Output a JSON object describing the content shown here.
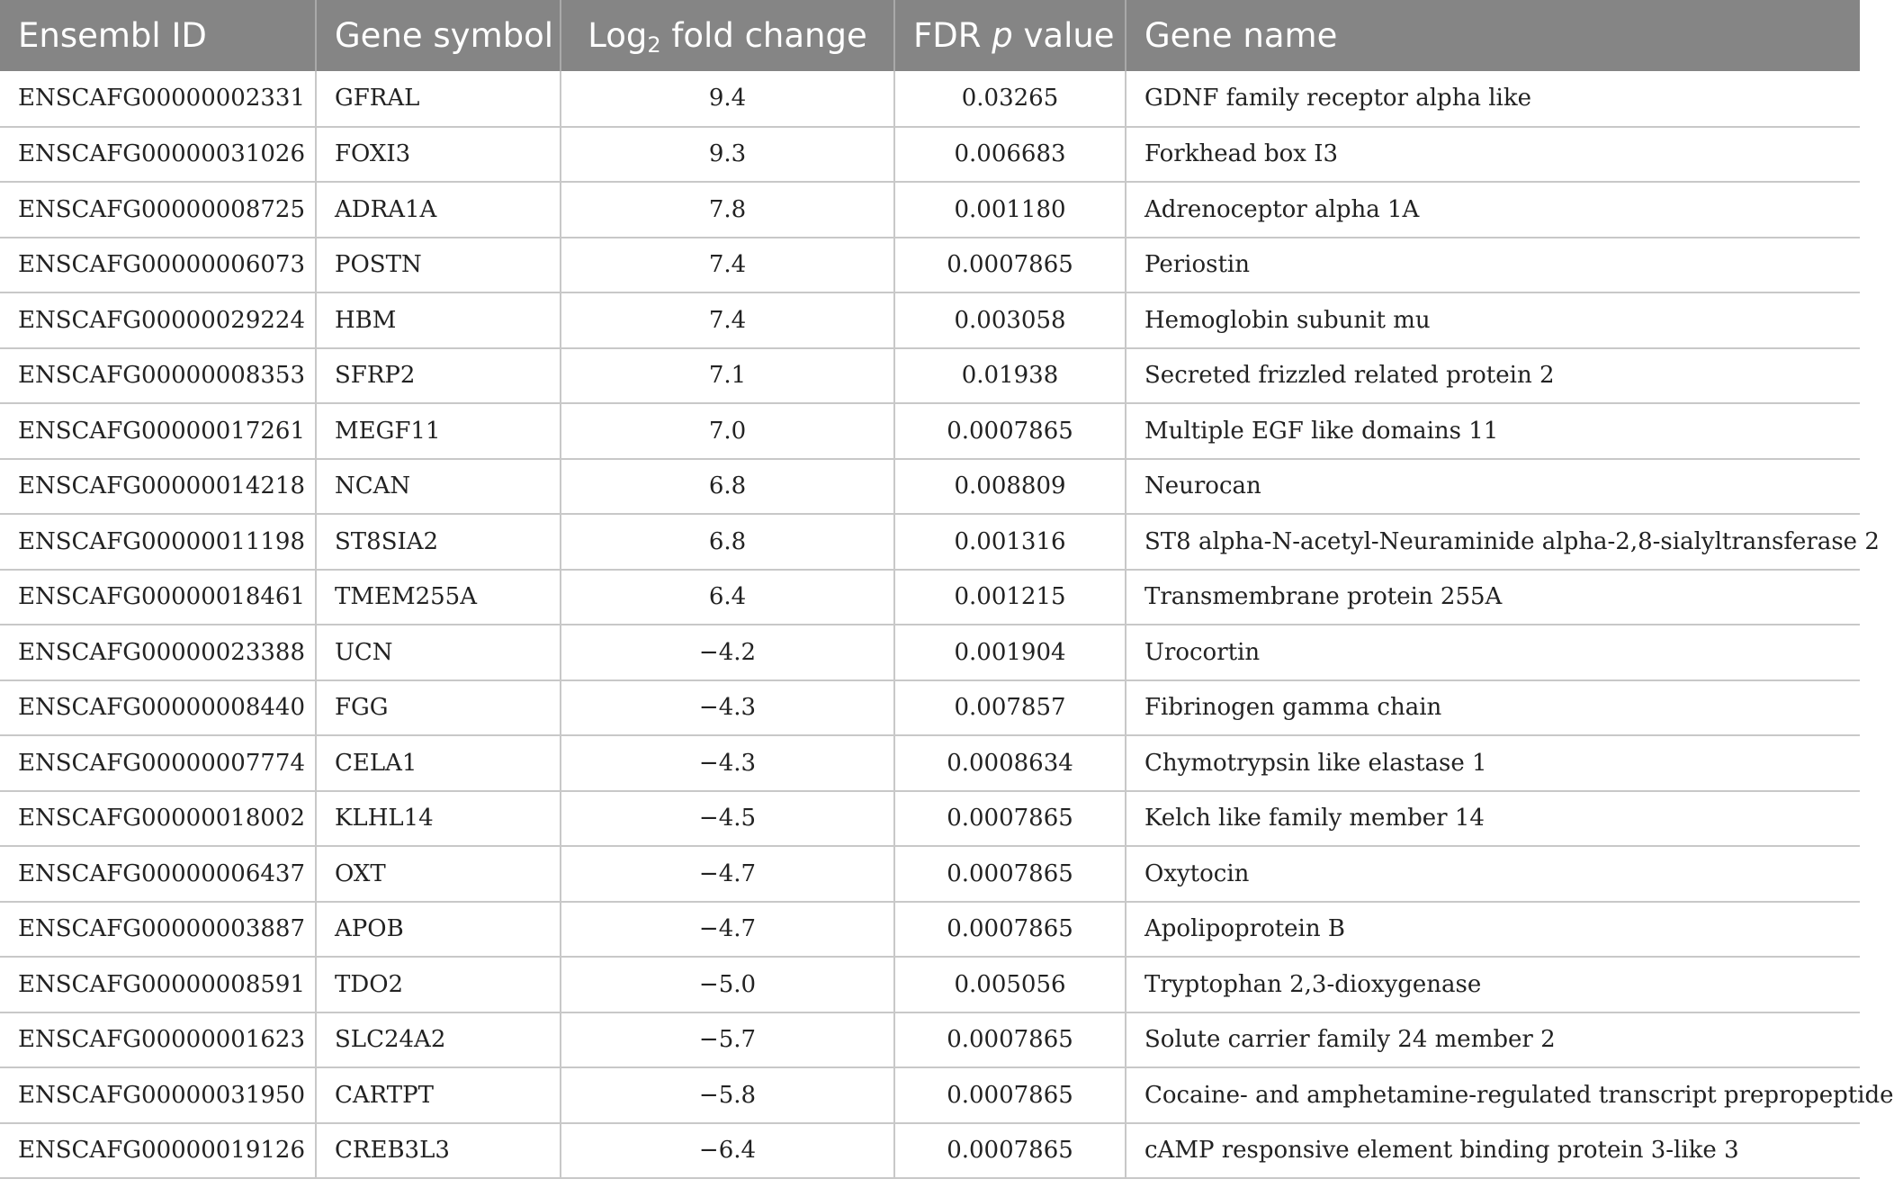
{
  "table": {
    "headers": {
      "ensembl_id": "Ensembl ID",
      "gene_symbol": "Gene symbol",
      "log2_prefix": "Log",
      "log2_sub": "2",
      "log2_suffix": " fold change",
      "fdr_prefix": "FDR ",
      "fdr_italic": "p",
      "fdr_suffix": " value",
      "gene_name": "Gene name"
    },
    "rows": [
      {
        "ensembl_id": "ENSCAFG00000002331",
        "symbol": "GFRAL",
        "log2fc": "9.4",
        "fdr": "0.03265",
        "name": "GDNF family receptor alpha like"
      },
      {
        "ensembl_id": "ENSCAFG00000031026",
        "symbol": "FOXI3",
        "log2fc": "9.3",
        "fdr": "0.006683",
        "name": "Forkhead box I3"
      },
      {
        "ensembl_id": "ENSCAFG00000008725",
        "symbol": "ADRA1A",
        "log2fc": "7.8",
        "fdr": "0.001180",
        "name": "Adrenoceptor alpha 1A"
      },
      {
        "ensembl_id": "ENSCAFG00000006073",
        "symbol": "POSTN",
        "log2fc": "7.4",
        "fdr": "0.0007865",
        "name": "Periostin"
      },
      {
        "ensembl_id": "ENSCAFG00000029224",
        "symbol": "HBM",
        "log2fc": "7.4",
        "fdr": "0.003058",
        "name": "Hemoglobin subunit mu"
      },
      {
        "ensembl_id": "ENSCAFG00000008353",
        "symbol": "SFRP2",
        "log2fc": "7.1",
        "fdr": "0.01938",
        "name": "Secreted frizzled related protein 2"
      },
      {
        "ensembl_id": "ENSCAFG00000017261",
        "symbol": "MEGF11",
        "log2fc": "7.0",
        "fdr": "0.0007865",
        "name": "Multiple EGF like domains 11"
      },
      {
        "ensembl_id": "ENSCAFG00000014218",
        "symbol": "NCAN",
        "log2fc": "6.8",
        "fdr": "0.008809",
        "name": "Neurocan"
      },
      {
        "ensembl_id": "ENSCAFG00000011198",
        "symbol": "ST8SIA2",
        "log2fc": "6.8",
        "fdr": "0.001316",
        "name": "ST8 alpha-N-acetyl-Neuraminide alpha-2,8-sialyltransferase 2"
      },
      {
        "ensembl_id": "ENSCAFG00000018461",
        "symbol": "TMEM255A",
        "log2fc": "6.4",
        "fdr": "0.001215",
        "name": "Transmembrane protein 255A"
      },
      {
        "ensembl_id": "ENSCAFG00000023388",
        "symbol": "UCN",
        "log2fc": "−4.2",
        "fdr": "0.001904",
        "name": "Urocortin"
      },
      {
        "ensembl_id": "ENSCAFG00000008440",
        "symbol": "FGG",
        "log2fc": "−4.3",
        "fdr": "0.007857",
        "name": "Fibrinogen gamma chain"
      },
      {
        "ensembl_id": "ENSCAFG00000007774",
        "symbol": "CELA1",
        "log2fc": "−4.3",
        "fdr": "0.0008634",
        "name": "Chymotrypsin like elastase 1"
      },
      {
        "ensembl_id": "ENSCAFG00000018002",
        "symbol": "KLHL14",
        "log2fc": "−4.5",
        "fdr": "0.0007865",
        "name": "Kelch like family member 14"
      },
      {
        "ensembl_id": "ENSCAFG00000006437",
        "symbol": "OXT",
        "log2fc": "−4.7",
        "fdr": "0.0007865",
        "name": "Oxytocin"
      },
      {
        "ensembl_id": "ENSCAFG00000003887",
        "symbol": "APOB",
        "log2fc": "−4.7",
        "fdr": "0.0007865",
        "name": "Apolipoprotein B"
      },
      {
        "ensembl_id": "ENSCAFG00000008591",
        "symbol": "TDO2",
        "log2fc": "−5.0",
        "fdr": "0.005056",
        "name": "Tryptophan 2,3-dioxygenase"
      },
      {
        "ensembl_id": "ENSCAFG00000001623",
        "symbol": "SLC24A2",
        "log2fc": "−5.7",
        "fdr": "0.0007865",
        "name": "Solute carrier family 24 member 2"
      },
      {
        "ensembl_id": "ENSCAFG00000031950",
        "symbol": "CARTPT",
        "log2fc": "−5.8",
        "fdr": "0.0007865",
        "name": "Cocaine- and amphetamine-regulated transcript prepropeptide"
      },
      {
        "ensembl_id": "ENSCAFG00000019126",
        "symbol": "CREB3L3",
        "log2fc": "−6.4",
        "fdr": "0.0007865",
        "name": "cAMP responsive element binding protein 3-like 3"
      }
    ]
  }
}
